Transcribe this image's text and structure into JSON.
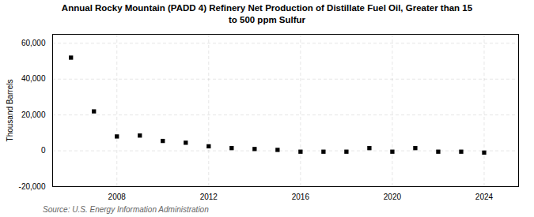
{
  "chart_data": {
    "type": "scatter",
    "title": "Annual Rocky Mountain (PADD 4) Refinery Net Production of Distillate Fuel Oil, Greater than 15\nto 500 ppm Sulfur",
    "ylabel": "Thousand Barrels",
    "annotations": [
      "Source: U.S. Energy Information Administration"
    ],
    "x": [
      2006,
      2007,
      2008,
      2009,
      2010,
      2011,
      2012,
      2013,
      2014,
      2015,
      2016,
      2017,
      2018,
      2019,
      2020,
      2021,
      2022,
      2023,
      2024
    ],
    "values": [
      52000,
      22000,
      8000,
      8500,
      5500,
      4500,
      2500,
      1500,
      1000,
      500,
      -500,
      -500,
      -500,
      1500,
      -500,
      1500,
      -500,
      -500,
      -1000
    ],
    "xlim": [
      2005.2,
      2025.5
    ],
    "xticks": [
      2008,
      2012,
      2016,
      2020,
      2024
    ],
    "ylim": [
      -20000,
      65000
    ],
    "yticks": [
      {
        "value": -20000,
        "label": "-20,000"
      },
      0,
      {
        "value": 20000,
        "label": "20,000"
      },
      {
        "value": 40000,
        "label": "40,000"
      },
      {
        "value": 60000,
        "label": "60,000"
      }
    ],
    "marker": "square",
    "grid": true
  }
}
